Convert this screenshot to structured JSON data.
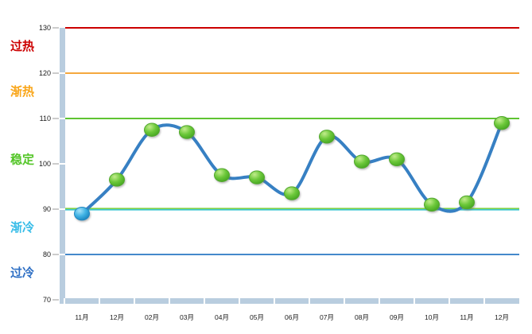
{
  "chart_data": {
    "type": "line",
    "title": "",
    "categories": [
      "11月",
      "12月",
      "02月",
      "03月",
      "04月",
      "05月",
      "06月",
      "07月",
      "08月",
      "09月",
      "10月",
      "11月",
      "12月"
    ],
    "values": [
      89,
      96.5,
      107.5,
      107,
      97.5,
      97,
      93.5,
      106,
      100.5,
      101,
      91,
      91.5,
      109
    ],
    "ylim": [
      70,
      130
    ],
    "yticks": [
      130,
      120,
      110,
      100,
      90,
      80,
      70
    ],
    "grid": false,
    "legend": "none",
    "line_color": "#3780C3",
    "line_width": 4,
    "axis_band_color": "#B9CDDF",
    "tick_color": "#999999",
    "label_color": "#1a1a1a",
    "marker_green": {
      "light": "#C2EC8C",
      "mid": "#6CC83A",
      "dark": "#3D9E1C",
      "border": "#52A82E"
    },
    "marker_blue": {
      "light": "#A6E2F8",
      "mid": "#3FB2E4",
      "dark": "#1378B4",
      "border": "#2389C0"
    },
    "first_marker": "blue",
    "trendlines": [
      {
        "value": 130,
        "colors": [
          "#CC0000"
        ]
      },
      {
        "value": 120,
        "colors": [
          "#F5A83E"
        ]
      },
      {
        "value": 110,
        "colors": [
          "#5FC431"
        ]
      },
      {
        "value": 90,
        "colors": [
          "#7FD148",
          "#3EC6CF"
        ]
      },
      {
        "value": 80,
        "colors": [
          "#4489CB"
        ]
      }
    ],
    "zones": [
      {
        "id": "overheat",
        "label": "过热",
        "color": "#CC0000",
        "from": 120,
        "to": 130
      },
      {
        "id": "warming",
        "label": "渐热",
        "color": "#F9A61A",
        "from": 110,
        "to": 120
      },
      {
        "id": "stable",
        "label": "稳定",
        "color": "#53C527",
        "from": 90,
        "to": 110
      },
      {
        "id": "cooling",
        "label": "渐冷",
        "color": "#39BDE8",
        "from": 80,
        "to": 90
      },
      {
        "id": "overcool",
        "label": "过冷",
        "color": "#2E6FC4",
        "from": 70,
        "to": 80
      }
    ]
  }
}
